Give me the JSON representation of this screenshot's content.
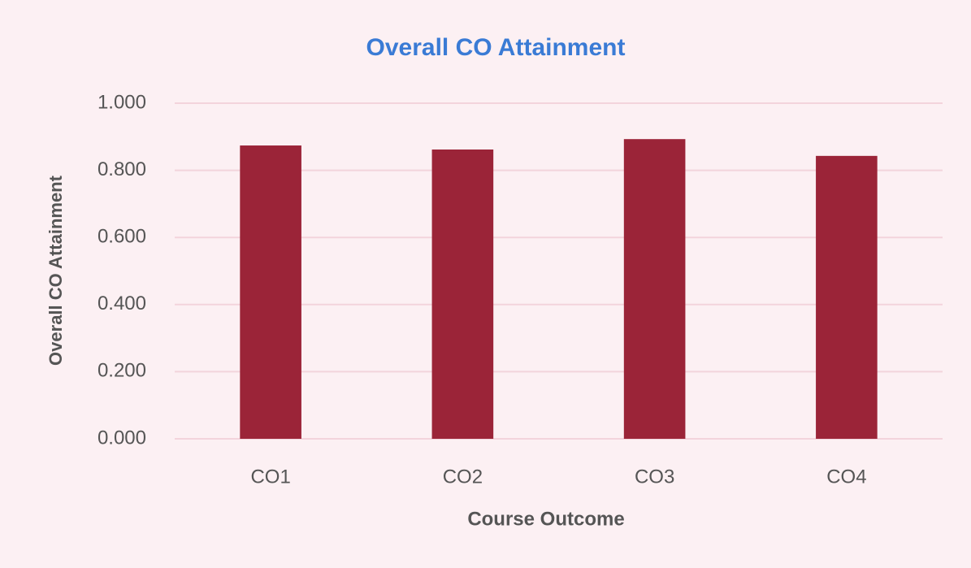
{
  "chart_data": {
    "type": "bar",
    "title": "Overall CO Attainment",
    "y_label": "Overall CO Attainment",
    "x_label": "Course Outcome",
    "categories": [
      "CO1",
      "CO2",
      "CO3",
      "CO4"
    ],
    "values": [
      0.874,
      0.862,
      0.893,
      0.843
    ],
    "color": "#9b2438",
    "ylim": [
      0,
      1
    ],
    "yticks": [
      {
        "value": 0,
        "label": "0.000"
      },
      {
        "value": 0.2,
        "label": "0.200"
      },
      {
        "value": 0.4,
        "label": "0.400"
      },
      {
        "value": 0.6,
        "label": "0.600"
      },
      {
        "value": 0.8,
        "label": "0.800"
      },
      {
        "value": 1,
        "label": "1.000"
      }
    ],
    "grid": true
  }
}
